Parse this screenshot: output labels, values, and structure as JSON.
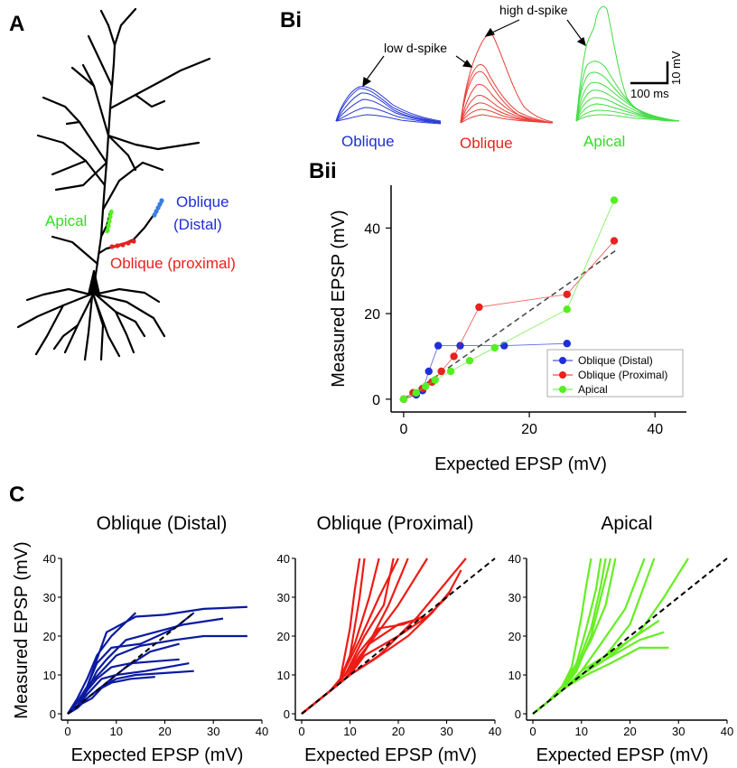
{
  "panel_letters": {
    "a": "A",
    "bi": "Bi",
    "bii": "Bii",
    "c": "C"
  },
  "colors": {
    "oblique_distal": "#1f2fd6",
    "oblique_proximal": "#e8221e",
    "apical": "#55ee22",
    "c_distal": "#0a1aa0",
    "c_proximal": "#ee1b14",
    "c_apical": "#66ee22",
    "neuron": "#000000",
    "dashed": "#444444"
  },
  "neuron_labels": {
    "apical": "Apical",
    "oblique_distal_1": "Oblique",
    "oblique_distal_2": "(Distal)",
    "oblique_proximal": "Oblique (proximal)"
  },
  "traces": {
    "annotation_low": "low d-spike",
    "annotation_high": "high d-spike",
    "label_blue": "Oblique",
    "label_red": "Oblique",
    "label_green": "Apical",
    "scale_time": "100 ms",
    "scale_voltage": "10 mV"
  },
  "chart_data": [
    {
      "id": "Bii",
      "type": "line",
      "title": "",
      "xlabel": "Expected EPSP (mV)",
      "ylabel": "Measured EPSP (mV)",
      "xlim": [
        -2,
        45
      ],
      "ylim": [
        -3,
        50
      ],
      "xticks": [
        0,
        20,
        40
      ],
      "yticks": [
        0,
        20,
        40
      ],
      "legend_position": "lower-right",
      "series": [
        {
          "name": "Oblique (Distal)",
          "color_key": "oblique_distal",
          "x": [
            0,
            2,
            3,
            4,
            5.5,
            9,
            16,
            26
          ],
          "y": [
            0,
            1,
            2,
            6.5,
            12.5,
            12.5,
            12.5,
            13
          ]
        },
        {
          "name": "Oblique (Proximal)",
          "color_key": "oblique_proximal",
          "x": [
            0,
            1.5,
            3,
            4.5,
            6,
            8,
            12,
            26,
            33.5
          ],
          "y": [
            0,
            1.5,
            2.5,
            4,
            6.5,
            10,
            21.5,
            24.5,
            37
          ]
        },
        {
          "name": "Apical",
          "color_key": "apical",
          "x": [
            0,
            2,
            3.5,
            5,
            7.5,
            10.5,
            14.5,
            26,
            33.5
          ],
          "y": [
            0,
            1.5,
            3,
            4.5,
            6.5,
            9,
            12,
            21,
            46.5
          ]
        }
      ],
      "reference_line": {
        "x": [
          0,
          34
        ],
        "y": [
          0,
          35
        ],
        "style": "dashed"
      }
    },
    {
      "id": "C-distal",
      "type": "line",
      "title": "Oblique (Distal)",
      "xlabel": "Expected EPSP (mV)",
      "ylabel": "Measured EPSP (mV)",
      "xlim": [
        0,
        40
      ],
      "ylim": [
        0,
        40
      ],
      "xticks": [
        0,
        10,
        20,
        30,
        40
      ],
      "yticks": [
        0,
        10,
        20,
        30,
        40
      ],
      "color_key": "c_distal",
      "reference_line": {
        "x": [
          0,
          26
        ],
        "y": [
          0,
          26
        ],
        "style": "dashed"
      },
      "series": [
        {
          "x": [
            0,
            2,
            4,
            6,
            8,
            14,
            20,
            28,
            37
          ],
          "y": [
            0,
            3,
            7,
            14,
            21,
            25,
            25.5,
            27,
            27.5
          ]
        },
        {
          "x": [
            0,
            2,
            4,
            6,
            9,
            14
          ],
          "y": [
            0,
            4,
            9,
            15,
            20,
            26
          ]
        },
        {
          "x": [
            0,
            2,
            4,
            6,
            8,
            12,
            18,
            24,
            32
          ],
          "y": [
            0,
            3,
            6,
            11,
            14,
            19,
            21,
            23,
            24.5
          ]
        },
        {
          "x": [
            0,
            2,
            4,
            7,
            10,
            15,
            22,
            28,
            37
          ],
          "y": [
            0,
            3,
            7,
            11,
            15,
            17.5,
            19,
            20,
            20
          ]
        },
        {
          "x": [
            0,
            2,
            4,
            6,
            9,
            13,
            18,
            23
          ],
          "y": [
            0,
            2,
            6,
            9,
            12,
            13,
            13.5,
            14
          ]
        },
        {
          "x": [
            0,
            2,
            4,
            7,
            10,
            16,
            25
          ],
          "y": [
            0,
            2,
            5,
            9,
            10,
            11,
            13
          ]
        },
        {
          "x": [
            0,
            2,
            4,
            7,
            10,
            14,
            20,
            26
          ],
          "y": [
            0,
            2,
            4,
            7,
            9,
            10,
            10.5,
            11
          ]
        },
        {
          "x": [
            0,
            2,
            4,
            6,
            9,
            13,
            18
          ],
          "y": [
            0,
            1.5,
            4,
            6,
            8,
            9,
            9.5
          ]
        },
        {
          "x": [
            0,
            2,
            4,
            6,
            9,
            15,
            22,
            26
          ],
          "y": [
            0,
            3,
            7,
            13,
            17,
            18,
            22,
            26
          ]
        },
        {
          "x": [
            0,
            2,
            5,
            8,
            12,
            17,
            23
          ],
          "y": [
            0,
            2,
            4,
            8,
            12,
            16,
            18
          ]
        }
      ]
    },
    {
      "id": "C-proximal",
      "type": "line",
      "title": "Oblique (Proximal)",
      "xlabel": "Expected EPSP (mV)",
      "ylabel": "",
      "xlim": [
        0,
        40
      ],
      "ylim": [
        0,
        40
      ],
      "xticks": [
        0,
        10,
        20,
        30,
        40
      ],
      "yticks": [
        0,
        10,
        20,
        30,
        40
      ],
      "color_key": "c_proximal",
      "reference_line": {
        "x": [
          0,
          40
        ],
        "y": [
          0,
          40
        ],
        "style": "dashed"
      },
      "series": [
        {
          "x": [
            0,
            3,
            6,
            8,
            10,
            11,
            12
          ],
          "y": [
            0,
            3,
            6,
            9,
            22,
            32,
            40
          ]
        },
        {
          "x": [
            0,
            3,
            6,
            8,
            10,
            12,
            13
          ],
          "y": [
            0,
            3,
            6,
            8,
            15,
            30,
            40
          ]
        },
        {
          "x": [
            0,
            3,
            6,
            8,
            11,
            14,
            16
          ],
          "y": [
            0,
            3,
            6,
            9,
            18,
            30,
            40
          ]
        },
        {
          "x": [
            0,
            3,
            6,
            8,
            12,
            16,
            20
          ],
          "y": [
            0,
            3,
            6,
            9,
            19,
            30,
            40
          ]
        },
        {
          "x": [
            0,
            3,
            6,
            9,
            13,
            17,
            19
          ],
          "y": [
            0,
            3,
            6,
            10,
            20,
            28,
            40
          ]
        },
        {
          "x": [
            0,
            3,
            6,
            9,
            13,
            18,
            22
          ],
          "y": [
            0,
            3,
            6,
            9,
            16,
            28,
            40
          ]
        },
        {
          "x": [
            0,
            3,
            6,
            9,
            14,
            20,
            26
          ],
          "y": [
            0,
            3,
            6,
            10,
            18,
            28,
            40
          ]
        },
        {
          "x": [
            0,
            3,
            7,
            10,
            16,
            24,
            34
          ],
          "y": [
            0,
            3,
            7,
            10,
            15,
            25,
            40
          ]
        },
        {
          "x": [
            0,
            3,
            7,
            10,
            13,
            20,
            26,
            30,
            33
          ],
          "y": [
            0,
            3,
            7,
            10,
            15,
            20,
            25,
            30,
            37
          ]
        },
        {
          "x": [
            0,
            3,
            7,
            10,
            14,
            20,
            26
          ],
          "y": [
            0,
            3,
            7,
            10,
            18,
            23,
            25
          ]
        },
        {
          "x": [
            0,
            3,
            6,
            9,
            12,
            16,
            21,
            25
          ],
          "y": [
            0,
            3,
            6,
            10,
            16,
            22,
            23,
            25
          ]
        },
        {
          "x": [
            0,
            3,
            7,
            10,
            15,
            22,
            27,
            31
          ],
          "y": [
            0,
            3,
            7,
            10,
            14,
            20,
            26,
            32
          ]
        }
      ]
    },
    {
      "id": "C-apical",
      "type": "line",
      "title": "Apical",
      "xlabel": "Expected EPSP (mV)",
      "ylabel": "",
      "xlim": [
        0,
        40
      ],
      "ylim": [
        0,
        40
      ],
      "xticks": [
        0,
        10,
        20,
        30,
        40
      ],
      "yticks": [
        0,
        10,
        20,
        30,
        40
      ],
      "color_key": "c_apical",
      "reference_line": {
        "x": [
          0,
          40
        ],
        "y": [
          0,
          40
        ],
        "style": "dashed"
      },
      "series": [
        {
          "x": [
            0,
            3,
            6,
            8,
            10,
            11,
            12
          ],
          "y": [
            0,
            3,
            7,
            12,
            25,
            33,
            40
          ]
        },
        {
          "x": [
            0,
            3,
            6,
            9,
            11,
            13,
            14
          ],
          "y": [
            0,
            3,
            7,
            13,
            22,
            32,
            40
          ]
        },
        {
          "x": [
            0,
            3,
            6,
            9,
            12,
            14,
            15
          ],
          "y": [
            0,
            3,
            7,
            12,
            22,
            33,
            40
          ]
        },
        {
          "x": [
            0,
            3,
            6,
            9,
            12,
            14,
            16
          ],
          "y": [
            0,
            3,
            6,
            11,
            20,
            30,
            40
          ]
        },
        {
          "x": [
            0,
            3,
            6,
            9,
            12,
            15,
            17
          ],
          "y": [
            0,
            3,
            6,
            12,
            19,
            28,
            40
          ]
        },
        {
          "x": [
            0,
            3,
            7,
            10,
            14,
            19,
            23
          ],
          "y": [
            0,
            3,
            7,
            11,
            18,
            27,
            40
          ]
        },
        {
          "x": [
            0,
            3,
            7,
            10,
            15,
            20,
            25
          ],
          "y": [
            0,
            3,
            7,
            11,
            15,
            23,
            40
          ]
        },
        {
          "x": [
            0,
            3,
            7,
            10,
            15,
            22,
            27,
            32
          ],
          "y": [
            0,
            3,
            7,
            10,
            14,
            21,
            30,
            40
          ]
        },
        {
          "x": [
            0,
            3,
            7,
            10,
            14,
            20,
            26
          ],
          "y": [
            0,
            3,
            7,
            10,
            14,
            19,
            24
          ]
        },
        {
          "x": [
            0,
            3,
            7,
            11,
            15,
            22,
            27
          ],
          "y": [
            0,
            3,
            7,
            11,
            14,
            19,
            21
          ]
        },
        {
          "x": [
            0,
            3,
            7,
            11,
            16,
            22,
            28
          ],
          "y": [
            0,
            3,
            7,
            10,
            13,
            17,
            17
          ]
        }
      ]
    }
  ]
}
